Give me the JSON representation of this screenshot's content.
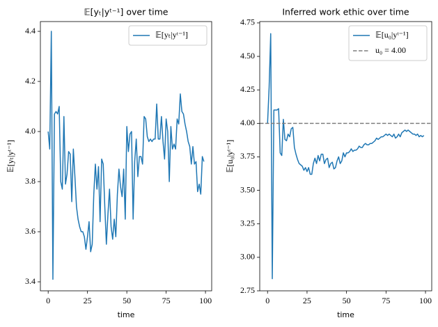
{
  "chart_data": [
    {
      "type": "line",
      "title": "𝔼[yₜ|yᵗ⁻¹] over time",
      "xlabel": "time",
      "ylabel": "𝔼[yₜ|yᵗ⁻¹]",
      "x": [
        0,
        1,
        2,
        3,
        4,
        5,
        6,
        7,
        8,
        9,
        10,
        11,
        12,
        13,
        14,
        15,
        16,
        17,
        18,
        19,
        20,
        21,
        22,
        23,
        24,
        25,
        26,
        27,
        28,
        29,
        30,
        31,
        32,
        33,
        34,
        35,
        36,
        37,
        38,
        39,
        40,
        41,
        42,
        43,
        44,
        45,
        46,
        47,
        48,
        49,
        50,
        51,
        52,
        53,
        54,
        55,
        56,
        57,
        58,
        59,
        60,
        61,
        62,
        63,
        64,
        65,
        66,
        67,
        68,
        69,
        70,
        71,
        72,
        73,
        74,
        75,
        76,
        77,
        78,
        79,
        80,
        81,
        82,
        83,
        84,
        85,
        86,
        87,
        88,
        89,
        90,
        91,
        92,
        93,
        94,
        95,
        96,
        97,
        98,
        99
      ],
      "series": [
        {
          "name": "𝔼[yₜ|yᵗ⁻¹]",
          "color": "#1f77b4",
          "values": [
            4.0,
            3.93,
            4.4,
            3.41,
            4.07,
            4.08,
            4.07,
            4.1,
            3.8,
            3.77,
            4.06,
            3.79,
            3.83,
            3.92,
            3.91,
            3.72,
            3.93,
            3.82,
            3.7,
            3.65,
            3.62,
            3.6,
            3.6,
            3.58,
            3.53,
            3.58,
            3.64,
            3.52,
            3.55,
            3.75,
            3.87,
            3.77,
            3.86,
            3.64,
            3.89,
            3.87,
            3.7,
            3.55,
            3.67,
            3.77,
            3.62,
            3.57,
            3.65,
            3.58,
            3.75,
            3.85,
            3.78,
            3.74,
            3.85,
            3.65,
            4.02,
            3.92,
            3.99,
            4.0,
            3.65,
            3.88,
            3.97,
            3.82,
            3.9,
            3.9,
            3.87,
            4.06,
            4.05,
            3.98,
            3.96,
            3.97,
            3.96,
            3.97,
            3.97,
            4.11,
            3.97,
            3.97,
            4.06,
            3.96,
            3.89,
            4.05,
            4.0,
            3.8,
            4.02,
            3.93,
            3.95,
            3.93,
            4.05,
            4.03,
            4.15,
            4.08,
            4.07,
            4.03,
            4.0,
            3.96,
            3.94,
            3.87,
            3.94,
            3.87,
            3.88,
            3.76,
            3.79,
            3.75,
            3.9,
            3.88
          ]
        }
      ],
      "xlim": [
        -4.95,
        103.95
      ],
      "ylim": [
        3.364,
        4.439
      ],
      "xticks": [
        0,
        25,
        50,
        75,
        100
      ],
      "yticks": [
        3.4,
        3.6,
        3.8,
        {
          "value": 4,
          "label": "4.0"
        },
        4.2,
        4.4
      ],
      "legend": "upper right"
    },
    {
      "type": "line",
      "title": "Inferred work ethic over time",
      "xlabel": "time",
      "ylabel": "𝔼[u₀|yᵗ⁻¹]",
      "x": [
        0,
        1,
        2,
        3,
        4,
        5,
        6,
        7,
        8,
        9,
        10,
        11,
        12,
        13,
        14,
        15,
        16,
        17,
        18,
        19,
        20,
        21,
        22,
        23,
        24,
        25,
        26,
        27,
        28,
        29,
        30,
        31,
        32,
        33,
        34,
        35,
        36,
        37,
        38,
        39,
        40,
        41,
        42,
        43,
        44,
        45,
        46,
        47,
        48,
        49,
        50,
        51,
        52,
        53,
        54,
        55,
        56,
        57,
        58,
        59,
        60,
        61,
        62,
        63,
        64,
        65,
        66,
        67,
        68,
        69,
        70,
        71,
        72,
        73,
        74,
        75,
        76,
        77,
        78,
        79,
        80,
        81,
        82,
        83,
        84,
        85,
        86,
        87,
        88,
        89,
        90,
        91,
        92,
        93,
        94,
        95,
        96,
        97,
        98,
        99
      ],
      "series": [
        {
          "name": "𝔼[u₀|yᵗ⁻¹]",
          "color": "#1f77b4",
          "values": [
            4.0,
            4.27,
            4.67,
            2.84,
            4.1,
            4.1,
            4.1,
            4.11,
            3.78,
            3.76,
            4.03,
            3.88,
            3.87,
            3.92,
            3.9,
            3.96,
            3.97,
            3.82,
            3.77,
            3.73,
            3.7,
            3.69,
            3.68,
            3.65,
            3.67,
            3.64,
            3.67,
            3.62,
            3.62,
            3.7,
            3.74,
            3.7,
            3.76,
            3.72,
            3.77,
            3.77,
            3.7,
            3.73,
            3.74,
            3.67,
            3.7,
            3.71,
            3.66,
            3.67,
            3.72,
            3.75,
            3.7,
            3.72,
            3.78,
            3.75,
            3.78,
            3.78,
            3.79,
            3.81,
            3.79,
            3.8,
            3.8,
            3.81,
            3.83,
            3.82,
            3.82,
            3.84,
            3.85,
            3.84,
            3.84,
            3.85,
            3.85,
            3.86,
            3.87,
            3.89,
            3.88,
            3.89,
            3.9,
            3.9,
            3.91,
            3.92,
            3.91,
            3.92,
            3.91,
            3.9,
            3.92,
            3.89,
            3.9,
            3.92,
            3.9,
            3.93,
            3.94,
            3.95,
            3.94,
            3.95,
            3.94,
            3.93,
            3.92,
            3.92,
            3.91,
            3.92,
            3.9,
            3.91,
            3.9,
            3.91
          ]
        },
        {
          "name": "u₀ = 4.00",
          "color": "#7f7f7f",
          "dashed": true,
          "hline": 4
        }
      ],
      "xlim": [
        -4.95,
        103.95
      ],
      "ylim": [
        2.75,
        4.76
      ],
      "xticks": [
        0,
        25,
        50,
        75,
        100
      ],
      "yticks": [
        2.75,
        {
          "value": 3,
          "label": "3.00"
        },
        3.25,
        {
          "value": 3.5,
          "label": "3.50"
        },
        3.75,
        {
          "value": 4,
          "label": "4.00"
        },
        4.25,
        {
          "value": 4.5,
          "label": "4.50"
        },
        4.75
      ],
      "legend": "upper right"
    }
  ]
}
